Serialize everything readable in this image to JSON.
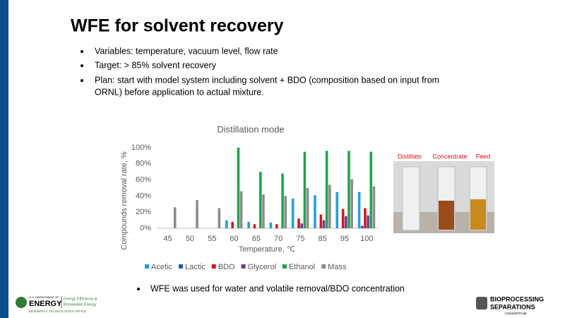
{
  "slide_title": "WFE for solvent recovery",
  "bullets": [
    "Variables: temperature, vacuum level, flow rate",
    "Target: > 85% solvent recovery",
    "Plan: start with model system including solvent + BDO (composition based on input from",
    "ORNL) before application to actual mixture."
  ],
  "bottom_bullet": "WFE was used for water and volatile removal/BDO concentration",
  "photo_labels": [
    "Distillate",
    "Concentrate",
    "Feed"
  ],
  "logo_left": [
    "U.S. DEPARTMENT OF",
    "ENERGY",
    "Energy Efficiency &",
    "Renewable Energy",
    "BIOENERGY TECHNOLOGIES OFFICE"
  ],
  "logo_right": [
    "BIOPROCESSING",
    "SEPARATIONS",
    "CONSORTIUM"
  ],
  "chart_data": {
    "type": "bar",
    "title": "Distillation mode",
    "x_label": "Temperature, ℃",
    "y_label": "Compounds removal rate, %",
    "categories": [
      "45",
      "50",
      "55",
      "60",
      "65",
      "70",
      "75",
      "85",
      "95",
      "100"
    ],
    "series": [
      {
        "name": "Acetic",
        "color": "#1ba1e2",
        "values": [
          null,
          null,
          null,
          10,
          8,
          7,
          37,
          41,
          45,
          45
        ]
      },
      {
        "name": "Lactic",
        "color": "#1f5fa8",
        "values": [
          null,
          null,
          null,
          null,
          null,
          null,
          null,
          null,
          null,
          3
        ]
      },
      {
        "name": "BDO",
        "color": "#e0101a",
        "values": [
          null,
          null,
          null,
          8,
          5,
          5,
          12,
          17,
          24,
          25
        ]
      },
      {
        "name": "Glycerol",
        "color": "#6a3d9a",
        "values": [
          null,
          null,
          null,
          null,
          null,
          null,
          6,
          10,
          15,
          16
        ]
      },
      {
        "name": "Ethanol",
        "color": "#1aa64a",
        "values": [
          null,
          null,
          null,
          100,
          70,
          68,
          95,
          96,
          96,
          95
        ]
      },
      {
        "name": "Mass",
        "color": "#8c8c8c",
        "values": [
          26,
          35,
          25,
          46,
          42,
          40,
          50,
          54,
          61,
          52
        ]
      }
    ],
    "ylim": [
      0,
      100
    ],
    "yticks": [
      {
        "value": 0,
        "label": "0%"
      },
      {
        "value": 20,
        "label": "20%"
      },
      {
        "value": 40,
        "label": "40%"
      },
      {
        "value": 60,
        "label": "60%"
      },
      {
        "value": 80,
        "label": "80%"
      },
      {
        "value": 100,
        "label": "100%"
      }
    ],
    "grid": false
  }
}
